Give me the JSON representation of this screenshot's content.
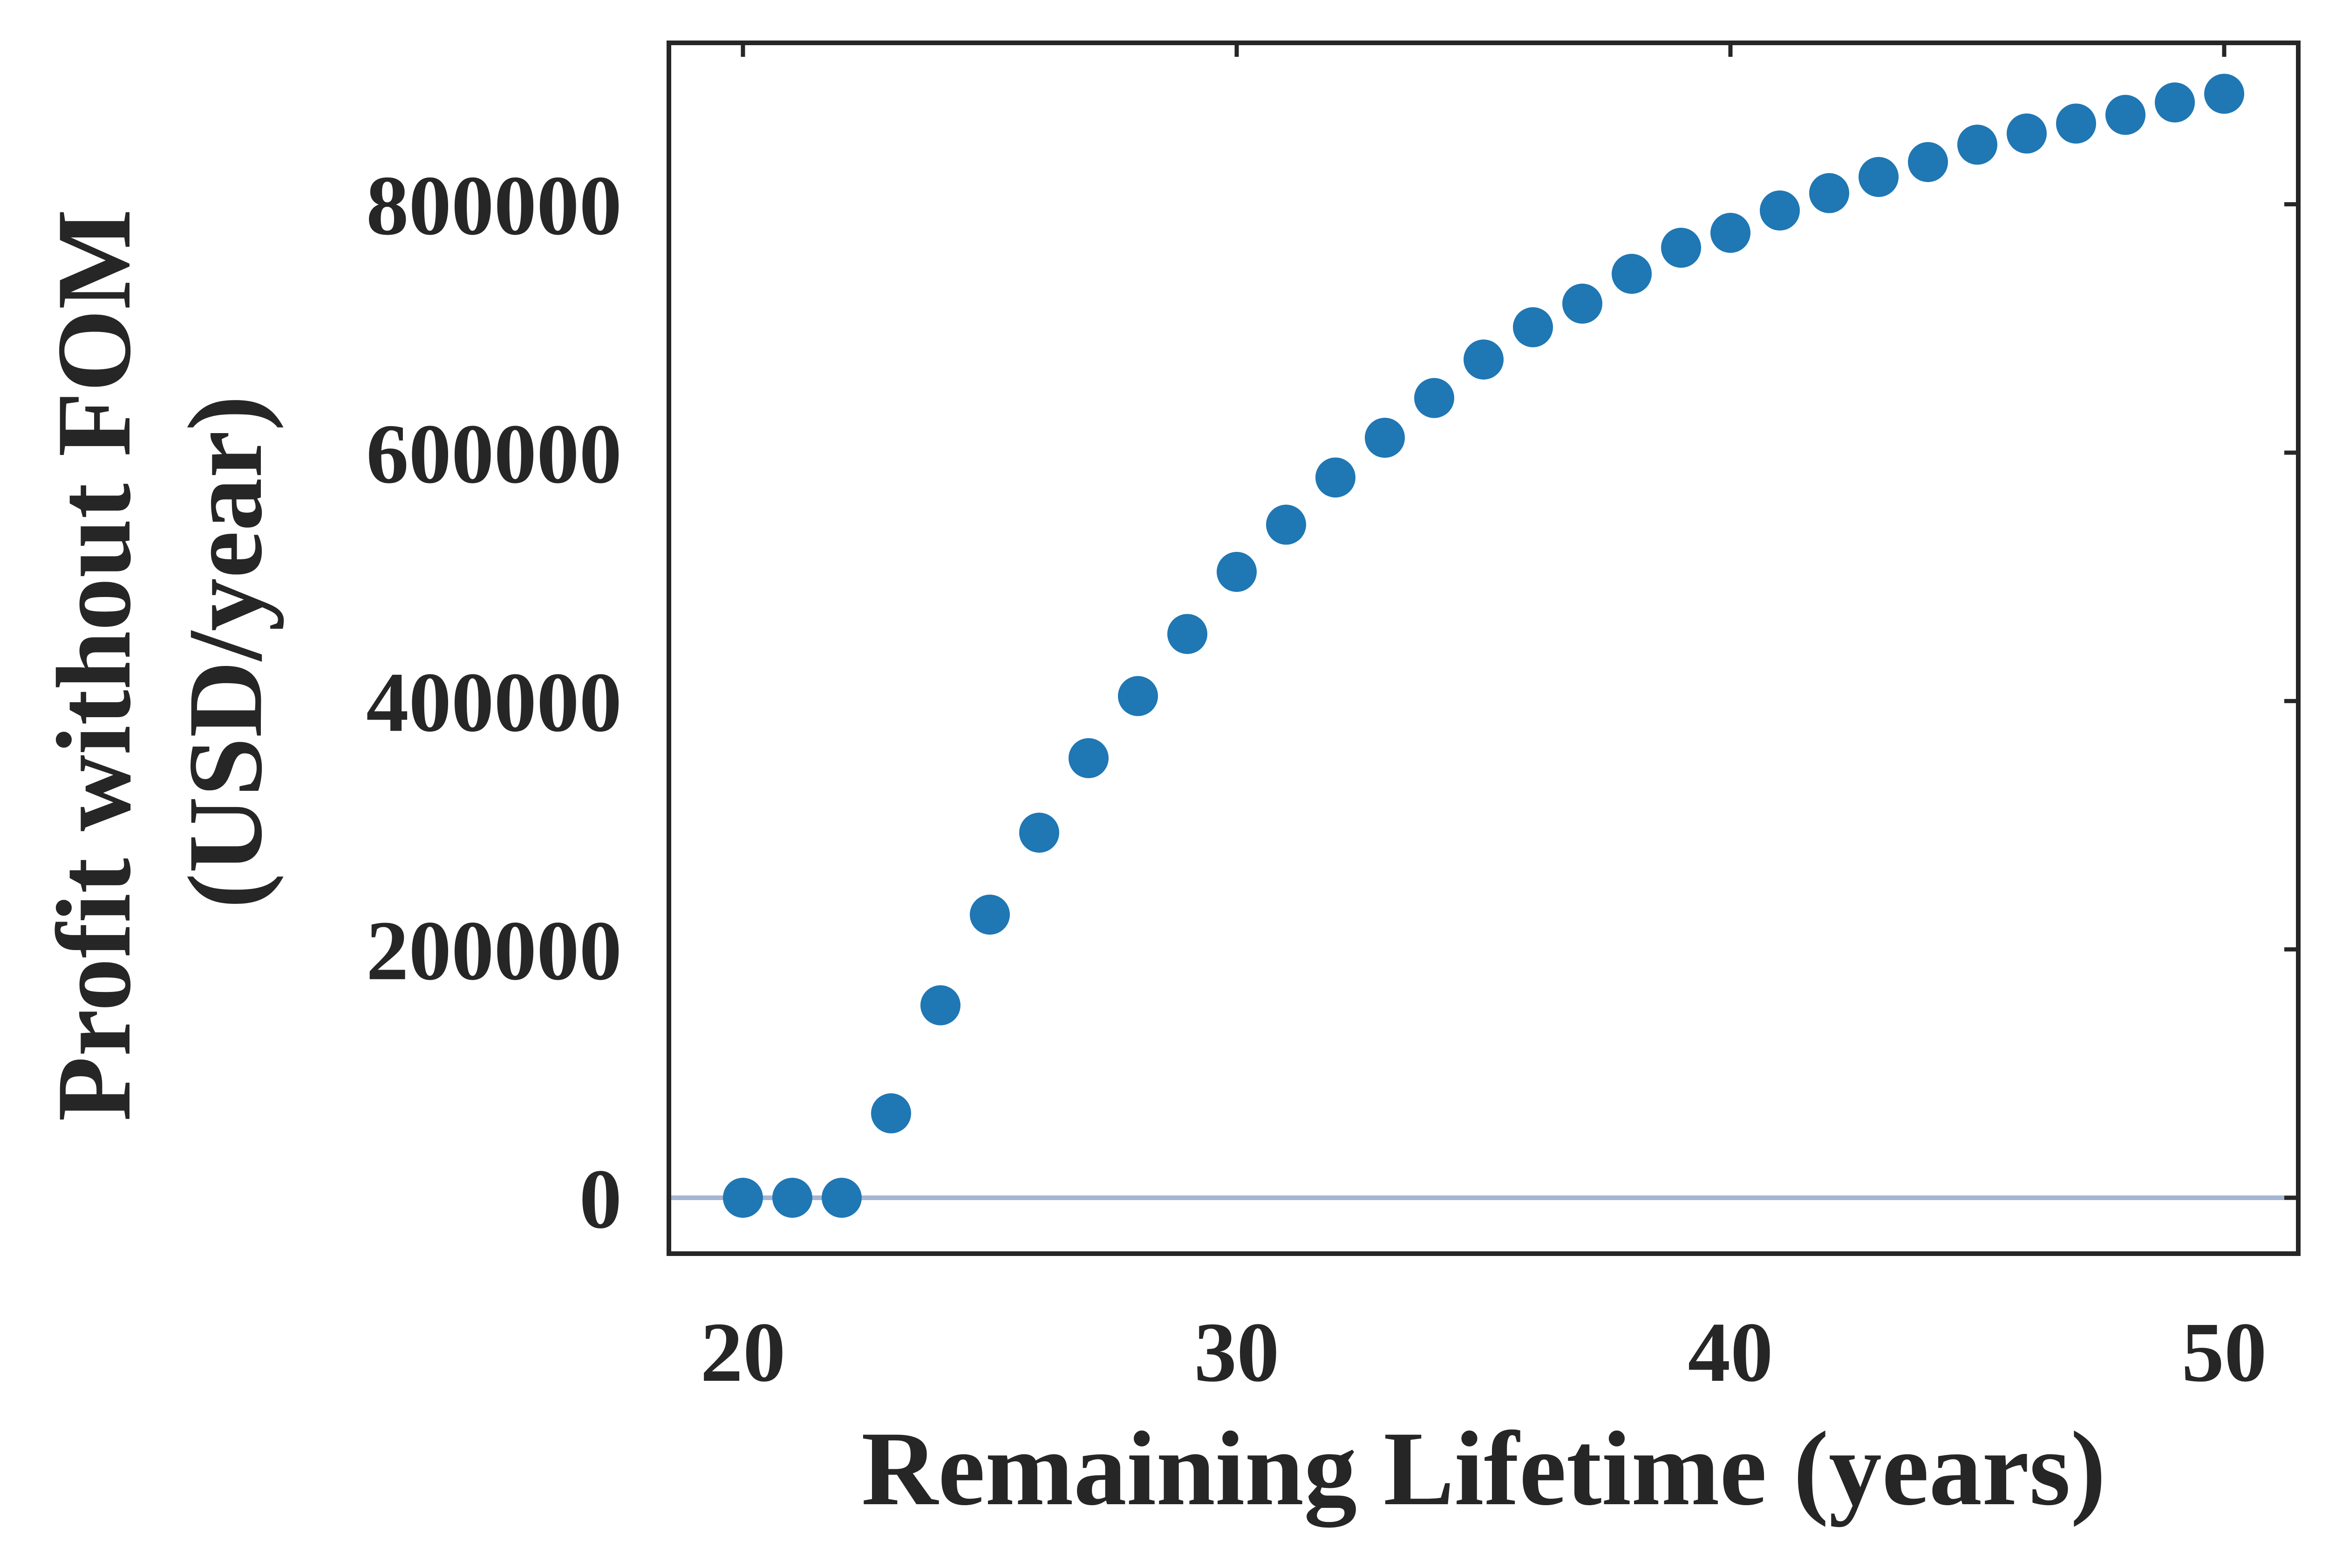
{
  "chart_data": {
    "type": "scatter",
    "title": "",
    "xlabel": "Remaining Lifetime (years)",
    "ylabel_lines": [
      "Profit without FOM",
      "(USD/year)"
    ],
    "xlim": [
      18.5,
      51.5
    ],
    "ylim": [
      -45000,
      930000
    ],
    "xticks": [
      20,
      30,
      40,
      50
    ],
    "yticks": [
      0,
      200000,
      400000,
      600000,
      800000
    ],
    "grid": false,
    "legend": "none",
    "point_color": "#1f77b4",
    "axis_color": "#262626",
    "reference_line": {
      "y": 0,
      "color": "#a5b5d4"
    },
    "series": [
      {
        "x": [
          20,
          21,
          22,
          23,
          24,
          25,
          26,
          27,
          28,
          29,
          30,
          31,
          32,
          33,
          34,
          35,
          36,
          37,
          38,
          39,
          40,
          41,
          42,
          43,
          44,
          45,
          46,
          47,
          48,
          49,
          50
        ],
        "y": [
          0,
          0,
          0,
          68000,
          155000,
          228000,
          294000,
          354000,
          404000,
          454000,
          504000,
          542000,
          580000,
          612000,
          644000,
          675000,
          701000,
          720000,
          744000,
          765000,
          777000,
          795000,
          809000,
          822000,
          834000,
          848000,
          857000,
          865000,
          872000,
          882000,
          889000
        ]
      }
    ]
  }
}
